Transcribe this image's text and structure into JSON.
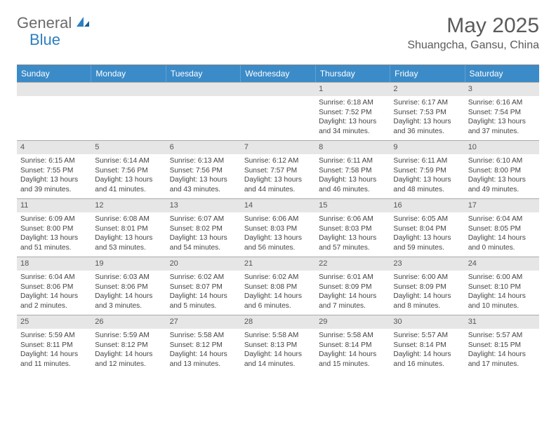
{
  "logo": {
    "line1": "General",
    "line2": "Blue"
  },
  "title": "May 2025",
  "location": "Shuangcha, Gansu, China",
  "colors": {
    "header_bg": "#3b8bc8",
    "header_text": "#ffffff",
    "daynum_bg": "#e6e6e6",
    "border": "#aaaaaa",
    "text": "#444444",
    "logo_gray": "#6b6b6b",
    "logo_blue": "#2d7fc1"
  },
  "day_labels": [
    "Sunday",
    "Monday",
    "Tuesday",
    "Wednesday",
    "Thursday",
    "Friday",
    "Saturday"
  ],
  "weeks": [
    [
      {
        "n": "",
        "sr": "",
        "ss": "",
        "dl": ""
      },
      {
        "n": "",
        "sr": "",
        "ss": "",
        "dl": ""
      },
      {
        "n": "",
        "sr": "",
        "ss": "",
        "dl": ""
      },
      {
        "n": "",
        "sr": "",
        "ss": "",
        "dl": ""
      },
      {
        "n": "1",
        "sr": "Sunrise: 6:18 AM",
        "ss": "Sunset: 7:52 PM",
        "dl": "Daylight: 13 hours and 34 minutes."
      },
      {
        "n": "2",
        "sr": "Sunrise: 6:17 AM",
        "ss": "Sunset: 7:53 PM",
        "dl": "Daylight: 13 hours and 36 minutes."
      },
      {
        "n": "3",
        "sr": "Sunrise: 6:16 AM",
        "ss": "Sunset: 7:54 PM",
        "dl": "Daylight: 13 hours and 37 minutes."
      }
    ],
    [
      {
        "n": "4",
        "sr": "Sunrise: 6:15 AM",
        "ss": "Sunset: 7:55 PM",
        "dl": "Daylight: 13 hours and 39 minutes."
      },
      {
        "n": "5",
        "sr": "Sunrise: 6:14 AM",
        "ss": "Sunset: 7:56 PM",
        "dl": "Daylight: 13 hours and 41 minutes."
      },
      {
        "n": "6",
        "sr": "Sunrise: 6:13 AM",
        "ss": "Sunset: 7:56 PM",
        "dl": "Daylight: 13 hours and 43 minutes."
      },
      {
        "n": "7",
        "sr": "Sunrise: 6:12 AM",
        "ss": "Sunset: 7:57 PM",
        "dl": "Daylight: 13 hours and 44 minutes."
      },
      {
        "n": "8",
        "sr": "Sunrise: 6:11 AM",
        "ss": "Sunset: 7:58 PM",
        "dl": "Daylight: 13 hours and 46 minutes."
      },
      {
        "n": "9",
        "sr": "Sunrise: 6:11 AM",
        "ss": "Sunset: 7:59 PM",
        "dl": "Daylight: 13 hours and 48 minutes."
      },
      {
        "n": "10",
        "sr": "Sunrise: 6:10 AM",
        "ss": "Sunset: 8:00 PM",
        "dl": "Daylight: 13 hours and 49 minutes."
      }
    ],
    [
      {
        "n": "11",
        "sr": "Sunrise: 6:09 AM",
        "ss": "Sunset: 8:00 PM",
        "dl": "Daylight: 13 hours and 51 minutes."
      },
      {
        "n": "12",
        "sr": "Sunrise: 6:08 AM",
        "ss": "Sunset: 8:01 PM",
        "dl": "Daylight: 13 hours and 53 minutes."
      },
      {
        "n": "13",
        "sr": "Sunrise: 6:07 AM",
        "ss": "Sunset: 8:02 PM",
        "dl": "Daylight: 13 hours and 54 minutes."
      },
      {
        "n": "14",
        "sr": "Sunrise: 6:06 AM",
        "ss": "Sunset: 8:03 PM",
        "dl": "Daylight: 13 hours and 56 minutes."
      },
      {
        "n": "15",
        "sr": "Sunrise: 6:06 AM",
        "ss": "Sunset: 8:03 PM",
        "dl": "Daylight: 13 hours and 57 minutes."
      },
      {
        "n": "16",
        "sr": "Sunrise: 6:05 AM",
        "ss": "Sunset: 8:04 PM",
        "dl": "Daylight: 13 hours and 59 minutes."
      },
      {
        "n": "17",
        "sr": "Sunrise: 6:04 AM",
        "ss": "Sunset: 8:05 PM",
        "dl": "Daylight: 14 hours and 0 minutes."
      }
    ],
    [
      {
        "n": "18",
        "sr": "Sunrise: 6:04 AM",
        "ss": "Sunset: 8:06 PM",
        "dl": "Daylight: 14 hours and 2 minutes."
      },
      {
        "n": "19",
        "sr": "Sunrise: 6:03 AM",
        "ss": "Sunset: 8:06 PM",
        "dl": "Daylight: 14 hours and 3 minutes."
      },
      {
        "n": "20",
        "sr": "Sunrise: 6:02 AM",
        "ss": "Sunset: 8:07 PM",
        "dl": "Daylight: 14 hours and 5 minutes."
      },
      {
        "n": "21",
        "sr": "Sunrise: 6:02 AM",
        "ss": "Sunset: 8:08 PM",
        "dl": "Daylight: 14 hours and 6 minutes."
      },
      {
        "n": "22",
        "sr": "Sunrise: 6:01 AM",
        "ss": "Sunset: 8:09 PM",
        "dl": "Daylight: 14 hours and 7 minutes."
      },
      {
        "n": "23",
        "sr": "Sunrise: 6:00 AM",
        "ss": "Sunset: 8:09 PM",
        "dl": "Daylight: 14 hours and 8 minutes."
      },
      {
        "n": "24",
        "sr": "Sunrise: 6:00 AM",
        "ss": "Sunset: 8:10 PM",
        "dl": "Daylight: 14 hours and 10 minutes."
      }
    ],
    [
      {
        "n": "25",
        "sr": "Sunrise: 5:59 AM",
        "ss": "Sunset: 8:11 PM",
        "dl": "Daylight: 14 hours and 11 minutes."
      },
      {
        "n": "26",
        "sr": "Sunrise: 5:59 AM",
        "ss": "Sunset: 8:12 PM",
        "dl": "Daylight: 14 hours and 12 minutes."
      },
      {
        "n": "27",
        "sr": "Sunrise: 5:58 AM",
        "ss": "Sunset: 8:12 PM",
        "dl": "Daylight: 14 hours and 13 minutes."
      },
      {
        "n": "28",
        "sr": "Sunrise: 5:58 AM",
        "ss": "Sunset: 8:13 PM",
        "dl": "Daylight: 14 hours and 14 minutes."
      },
      {
        "n": "29",
        "sr": "Sunrise: 5:58 AM",
        "ss": "Sunset: 8:14 PM",
        "dl": "Daylight: 14 hours and 15 minutes."
      },
      {
        "n": "30",
        "sr": "Sunrise: 5:57 AM",
        "ss": "Sunset: 8:14 PM",
        "dl": "Daylight: 14 hours and 16 minutes."
      },
      {
        "n": "31",
        "sr": "Sunrise: 5:57 AM",
        "ss": "Sunset: 8:15 PM",
        "dl": "Daylight: 14 hours and 17 minutes."
      }
    ]
  ]
}
